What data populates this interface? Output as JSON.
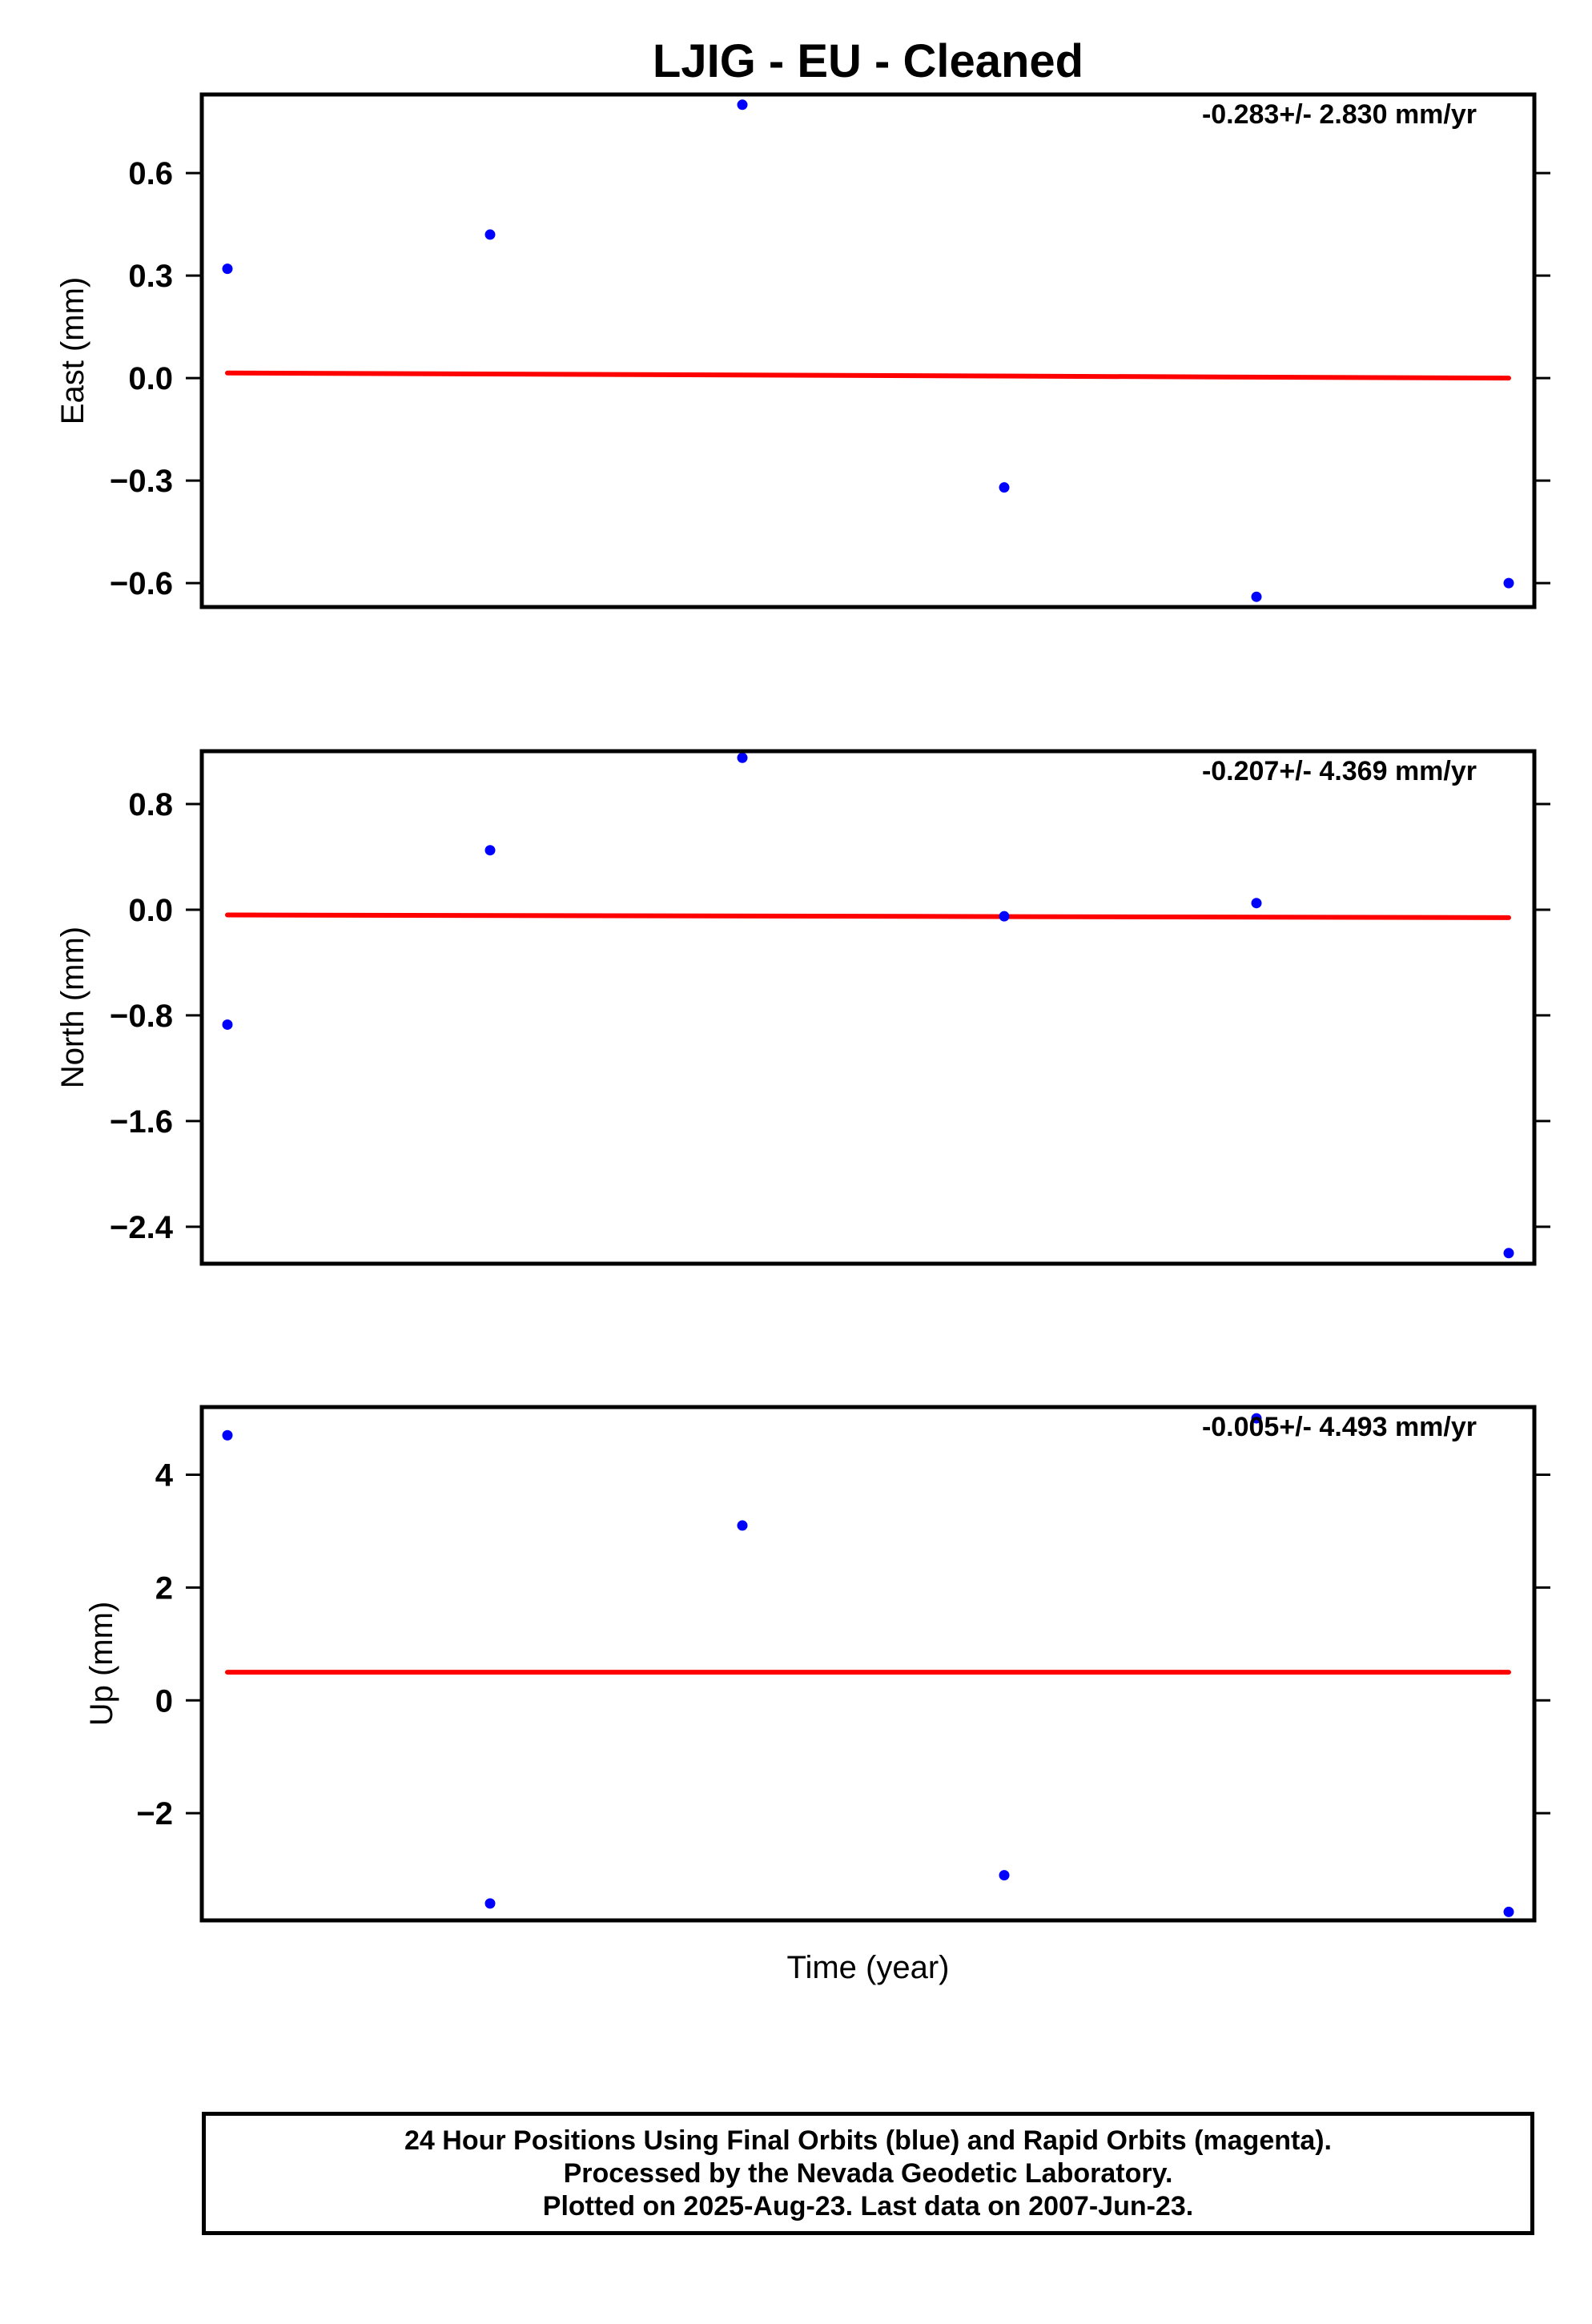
{
  "title": "LJIG  - EU - Cleaned",
  "xlabel": "Time (year)",
  "colors": {
    "final_orbits": "#0000ff",
    "trend": "#ff0000",
    "axes": "#000000"
  },
  "chart_data": [
    {
      "type": "scatter",
      "ylabel": "East (mm)",
      "rate_annotation": "-0.283+/- 2.830 mm/yr",
      "ylim": [
        -0.67,
        0.83
      ],
      "yticks": [
        0.6,
        0.3,
        0.0,
        -0.3,
        -0.6
      ],
      "ytick_labels": [
        "0.6",
        "0.3",
        "0.0",
        "−0.3",
        "−0.6"
      ],
      "points": [
        {
          "i": 0,
          "y": 0.32
        },
        {
          "i": 1,
          "y": 0.42
        },
        {
          "i": 2,
          "y": 0.8
        },
        {
          "i": 3,
          "y": -0.32
        },
        {
          "i": 4,
          "y": -0.64
        },
        {
          "i": 5,
          "y": -0.6
        }
      ],
      "trend": {
        "y_start": 0.015,
        "y_end": 0.0
      }
    },
    {
      "type": "scatter",
      "ylabel": "North (mm)",
      "rate_annotation": "-0.207+/- 4.369 mm/yr",
      "ylim": [
        -2.68,
        1.2
      ],
      "yticks": [
        0.8,
        0.0,
        -0.8,
        -1.6,
        -2.4
      ],
      "ytick_labels": [
        "0.8",
        "0.0",
        "−0.8",
        "−1.6",
        "−2.4"
      ],
      "points": [
        {
          "i": 0,
          "y": -0.87
        },
        {
          "i": 1,
          "y": 0.45
        },
        {
          "i": 2,
          "y": 1.15
        },
        {
          "i": 3,
          "y": -0.05
        },
        {
          "i": 4,
          "y": 0.05
        },
        {
          "i": 5,
          "y": -2.6
        }
      ],
      "trend": {
        "y_start": -0.04,
        "y_end": -0.06
      }
    },
    {
      "type": "scatter",
      "ylabel": "Up (mm)",
      "rate_annotation": "-0.005+/- 4.493 mm/yr",
      "ylim": [
        -3.9,
        5.2
      ],
      "yticks": [
        4,
        2,
        0,
        -2
      ],
      "ytick_labels": [
        "4",
        "2",
        "0",
        "−2"
      ],
      "points": [
        {
          "i": 0,
          "y": 4.7
        },
        {
          "i": 1,
          "y": -3.6
        },
        {
          "i": 2,
          "y": 3.1
        },
        {
          "i": 3,
          "y": -3.1
        },
        {
          "i": 4,
          "y": 5.0
        },
        {
          "i": 5,
          "y": -3.75
        }
      ],
      "trend": {
        "y_start": 0.5,
        "y_end": 0.5
      }
    }
  ],
  "caption": {
    "line1": "24 Hour Positions Using Final Orbits (blue) and Rapid Orbits (magenta).",
    "line2": "Processed by the Nevada Geodetic Laboratory.",
    "line3": "Plotted on 2025-Aug-23. Last data on 2007-Jun-23."
  }
}
